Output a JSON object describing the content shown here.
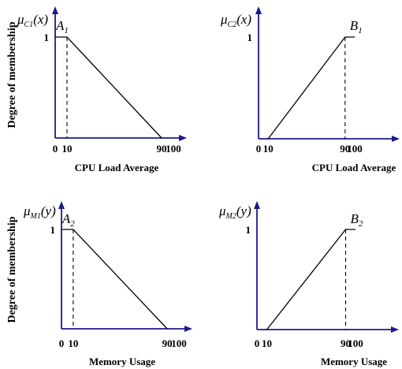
{
  "colors": {
    "axis": "#1a1a8c",
    "curve": "#000000",
    "text": "#000000"
  },
  "ylabel": "Degree of membership",
  "chart_data": [
    {
      "type": "line",
      "xlabel": "CPU Load Average",
      "ylabel": "Degree of membership",
      "mu_label": {
        "symbol": "μ",
        "sub": "C1",
        "arg": "(x)"
      },
      "set_label": {
        "name": "A",
        "sub": "1"
      },
      "y_tick": "1",
      "x_ticks": [
        "0",
        "10",
        "90",
        "100"
      ],
      "xlim": [
        0,
        100
      ],
      "ylim": [
        0,
        1
      ],
      "points": [
        [
          0,
          1
        ],
        [
          10,
          1
        ],
        [
          90,
          0
        ]
      ],
      "dashed_at_x": 10,
      "shape": "decreasing"
    },
    {
      "type": "line",
      "xlabel": "CPU Load Average",
      "ylabel": "",
      "mu_label": {
        "symbol": "μ",
        "sub": "C2",
        "arg": "(x)"
      },
      "set_label": {
        "name": "B",
        "sub": "1"
      },
      "y_tick": "1",
      "x_ticks": [
        "0",
        "10",
        "90",
        "100"
      ],
      "xlim": [
        0,
        100
      ],
      "ylim": [
        0,
        1
      ],
      "points": [
        [
          10,
          0
        ],
        [
          90,
          1
        ],
        [
          100,
          1
        ]
      ],
      "dashed_at_x": 90,
      "shape": "increasing"
    },
    {
      "type": "line",
      "xlabel": "Memory Usage",
      "ylabel": "Degree of membership",
      "mu_label": {
        "symbol": "μ",
        "sub": "M1",
        "arg": "(y)"
      },
      "set_label": {
        "name": "A",
        "sub": "2"
      },
      "y_tick": "1",
      "x_ticks": [
        "0",
        "10",
        "90",
        "100"
      ],
      "xlim": [
        0,
        100
      ],
      "ylim": [
        0,
        1
      ],
      "points": [
        [
          0,
          1
        ],
        [
          10,
          1
        ],
        [
          90,
          0
        ]
      ],
      "dashed_at_x": 10,
      "shape": "decreasing"
    },
    {
      "type": "line",
      "xlabel": "Memory Usage",
      "ylabel": "",
      "mu_label": {
        "symbol": "μ",
        "sub": "M2",
        "arg": "(y)"
      },
      "set_label": {
        "name": "B",
        "sub": "2"
      },
      "y_tick": "1",
      "x_ticks": [
        "0",
        "10",
        "90",
        "100"
      ],
      "xlim": [
        0,
        100
      ],
      "ylim": [
        0,
        1
      ],
      "points": [
        [
          10,
          0
        ],
        [
          90,
          1
        ],
        [
          100,
          1
        ]
      ],
      "dashed_at_x": 90,
      "shape": "increasing"
    }
  ]
}
